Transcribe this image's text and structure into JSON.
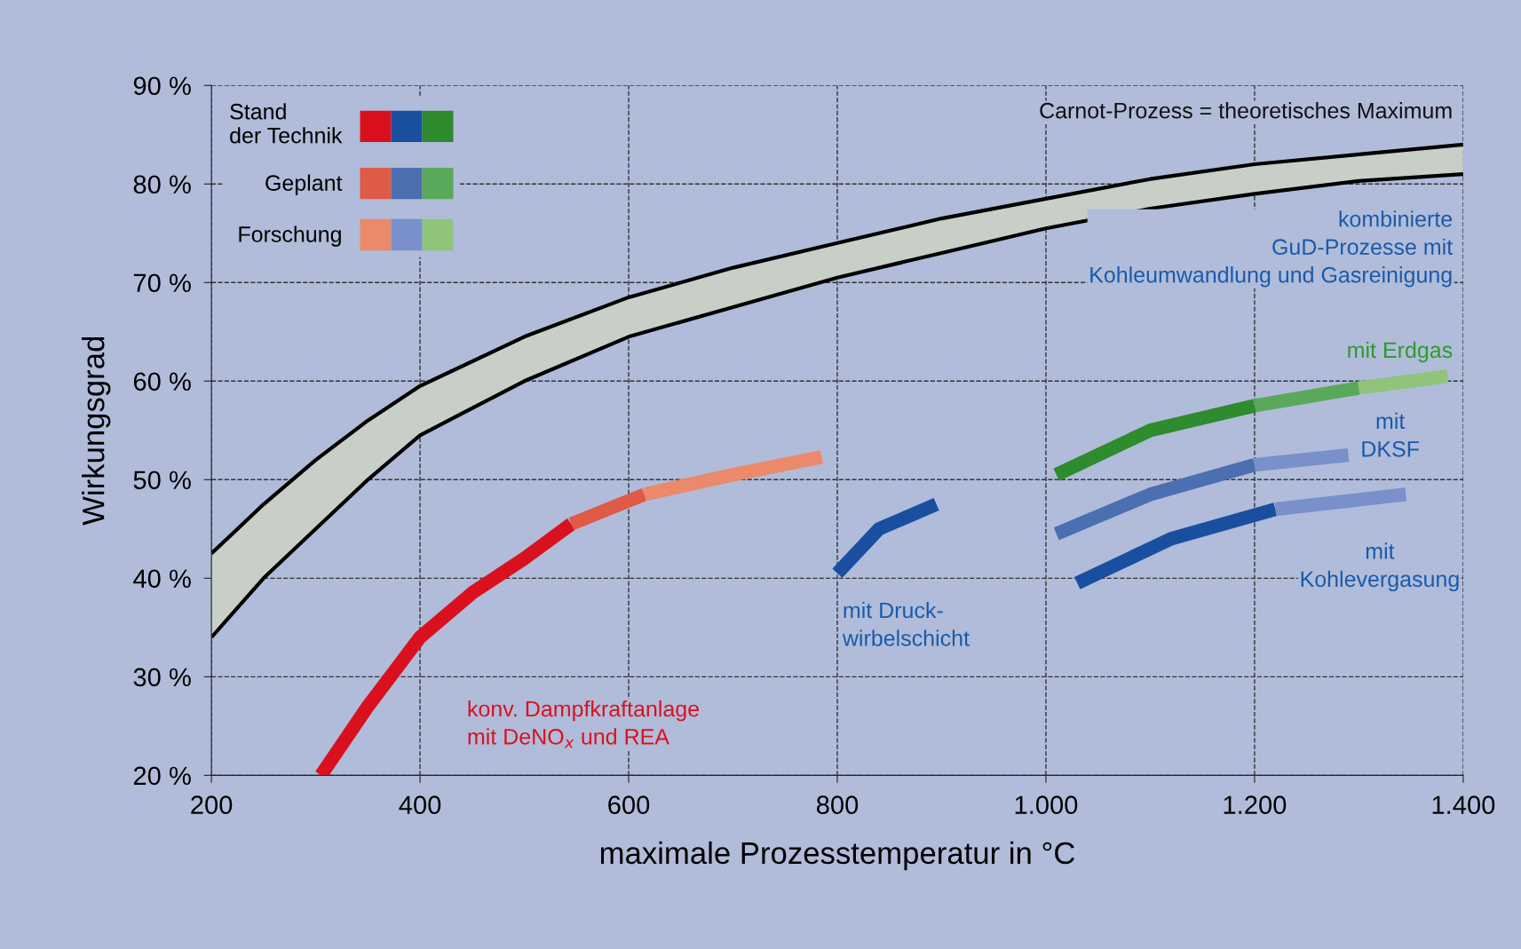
{
  "chart_data": {
    "type": "line",
    "xlabel": "maximale Prozesstemperatur in °C",
    "ylabel": "Wirkungsgrad",
    "xlim": [
      200,
      1400
    ],
    "ylim": [
      20,
      90
    ],
    "xticks": [
      200,
      400,
      600,
      800,
      {
        "value": 1000,
        "label": "1.000"
      },
      {
        "value": 1200,
        "label": "1.200"
      },
      {
        "value": 1400,
        "label": "1.400"
      }
    ],
    "yticks": [
      {
        "value": 20,
        "label": "20 %"
      },
      {
        "value": 30,
        "label": "30 %"
      },
      {
        "value": 40,
        "label": "40 %"
      },
      {
        "value": 50,
        "label": "50 %"
      },
      {
        "value": 60,
        "label": "60 %"
      },
      {
        "value": 70,
        "label": "70 %"
      },
      {
        "value": 80,
        "label": "80 %"
      },
      {
        "value": 90,
        "label": "90 %"
      }
    ],
    "grid": true,
    "legend": "top left",
    "marker": "none",
    "line_style": "solid",
    "series": [
      {
        "color": "#000000",
        "x": [
          200,
          250,
          300,
          350,
          400,
          500,
          600,
          700,
          800,
          900,
          1000,
          1100,
          1200,
          1300,
          1400
        ],
        "values": [
          42.5,
          47.5,
          52,
          56,
          59.5,
          64.5,
          68.5,
          71.5,
          74,
          76.5,
          78.5,
          80.5,
          82,
          83,
          84
        ],
        "lower": [
          34,
          40,
          45,
          50,
          54.5,
          60,
          64.5,
          67.5,
          70.5,
          73,
          75.5,
          77.5,
          79,
          80.3,
          81
        ],
        "upper": [
          42.5,
          47.5,
          52,
          56,
          59.5,
          64.5,
          68.5,
          71.5,
          74,
          76.5,
          78.5,
          80.5,
          82,
          83,
          84
        ]
      },
      {
        "color": "#000000",
        "x": [
          200,
          250,
          300,
          350,
          400,
          500,
          600,
          700,
          800,
          900,
          1000,
          1100,
          1200,
          1300,
          1400
        ],
        "values": [
          34,
          40,
          45,
          50,
          54.5,
          60,
          64.5,
          67.5,
          70.5,
          73,
          75.5,
          77.5,
          79,
          80.3,
          81
        ]
      },
      {
        "name": "Stand\nder Technik",
        "color": "#d9111f",
        "x": [
          305,
          350,
          400,
          450,
          500,
          545
        ],
        "values": [
          20,
          27,
          34,
          38.5,
          42,
          45.5
        ]
      },
      {
        "name": "Geplant",
        "color": "#e05a48",
        "x": [
          545,
          615
        ],
        "values": [
          45.5,
          48.5
        ]
      },
      {
        "name": "Forschung",
        "color": "#ea8a6a",
        "x": [
          615,
          700,
          785
        ],
        "values": [
          48.5,
          50.5,
          52.3
        ]
      },
      {
        "color": "#1a4fa0",
        "x": [
          800,
          840,
          895
        ],
        "values": [
          40.5,
          45,
          47.5
        ]
      },
      {
        "color": "#4b6fb0",
        "x": [
          1010,
          1100,
          1200
        ],
        "values": [
          44.5,
          48.5,
          51.5
        ]
      },
      {
        "color": "#7a90cc",
        "x": [
          1200,
          1290
        ],
        "values": [
          51.5,
          52.5
        ]
      },
      {
        "color": "#2e8b2e",
        "x": [
          1010,
          1100,
          1200
        ],
        "values": [
          50.5,
          55,
          57.5
        ]
      },
      {
        "color": "#5aa85a",
        "x": [
          1200,
          1300
        ],
        "values": [
          57.5,
          59.3
        ]
      },
      {
        "color": "#8fc47a",
        "x": [
          1300,
          1385
        ],
        "values": [
          59.3,
          60.5
        ]
      },
      {
        "color": "#1a4fa0",
        "x": [
          1030,
          1120,
          1220
        ],
        "values": [
          39.5,
          44,
          47
        ]
      },
      {
        "color": "#7a90cc",
        "x": [
          1220,
          1345
        ],
        "values": [
          47,
          48.5
        ]
      }
    ],
    "annotations": [
      "Carnot-Prozess = theoretisches Maximum",
      "kombinierte\nGuD-Prozesse mit\nKohleumwandlung und Gasreinigung",
      "mit Erdgas",
      "mit\nDKSF",
      "mit\nKohlevergasung",
      "mit Druck-\nwirbelschicht",
      "konv. Dampfkraftanlage\nmit DeNO$_{x}$ und REA"
    ]
  }
}
